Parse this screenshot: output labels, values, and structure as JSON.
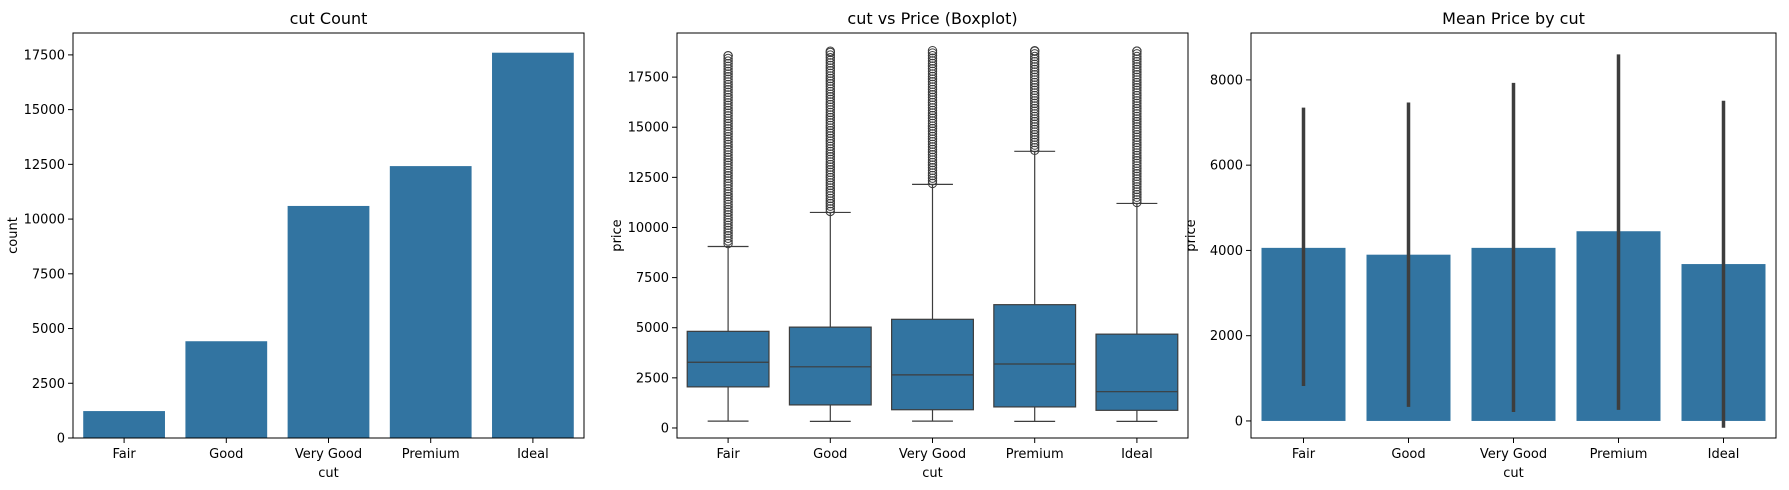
{
  "chart_data": [
    {
      "type": "bar",
      "title": "cut Count",
      "xlabel": "cut",
      "ylabel": "count",
      "categories": [
        "Fair",
        "Good",
        "Very Good",
        "Premium",
        "Ideal"
      ],
      "values": [
        1230,
        4420,
        10600,
        12420,
        17600
      ],
      "ylim": [
        0,
        18500
      ],
      "yticks": [
        0,
        2500,
        5000,
        7500,
        10000,
        12500,
        15000,
        17500
      ],
      "grid": false
    },
    {
      "type": "box",
      "title": "cut vs Price (Boxplot)",
      "xlabel": "cut",
      "ylabel": "price",
      "categories": [
        "Fair",
        "Good",
        "Very Good",
        "Premium",
        "Ideal"
      ],
      "boxes": [
        {
          "whisker_low": 340,
          "q1": 2050,
          "median": 3280,
          "q3": 4820,
          "whisker_high": 9050,
          "outlier_min": 9200,
          "outlier_max": 18570
        },
        {
          "whisker_low": 330,
          "q1": 1150,
          "median": 3050,
          "q3": 5030,
          "whisker_high": 10750,
          "outlier_min": 10800,
          "outlier_max": 18790
        },
        {
          "whisker_low": 340,
          "q1": 910,
          "median": 2650,
          "q3": 5420,
          "whisker_high": 12150,
          "outlier_min": 12200,
          "outlier_max": 18820
        },
        {
          "whisker_low": 330,
          "q1": 1050,
          "median": 3190,
          "q3": 6150,
          "whisker_high": 13800,
          "outlier_min": 13850,
          "outlier_max": 18820
        },
        {
          "whisker_low": 330,
          "q1": 880,
          "median": 1810,
          "q3": 4680,
          "whisker_high": 11200,
          "outlier_min": 11250,
          "outlier_max": 18800
        }
      ],
      "ylim": [
        -500,
        19700
      ],
      "yticks": [
        0,
        2500,
        5000,
        7500,
        10000,
        12500,
        15000,
        17500
      ],
      "grid": false
    },
    {
      "type": "bar",
      "title": "Mean Price by cut",
      "xlabel": "cut",
      "ylabel": "price",
      "categories": [
        "Fair",
        "Good",
        "Very Good",
        "Premium",
        "Ideal"
      ],
      "values": [
        4060,
        3900,
        4060,
        4450,
        3680
      ],
      "error_low": [
        820,
        330,
        210,
        260,
        -160
      ],
      "error_high": [
        7350,
        7470,
        7930,
        8600,
        7510
      ],
      "ylim": [
        -400,
        9100
      ],
      "yticks": [
        0,
        2000,
        4000,
        6000,
        8000
      ],
      "grid": false
    }
  ],
  "colors": {
    "bar": "#3274a1",
    "box": "#3274a1",
    "line": "#3d3d3d",
    "errorbar": "#3d3d3d",
    "axis": "#000000"
  }
}
